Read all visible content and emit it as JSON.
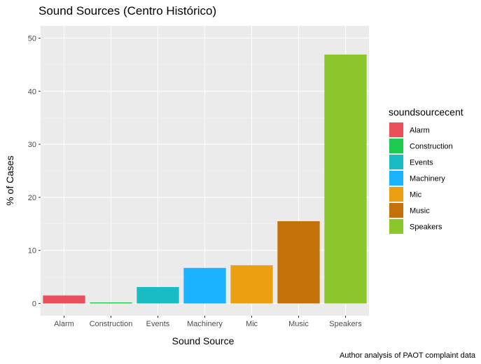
{
  "chart_data": {
    "type": "bar",
    "title": "Sound Sources (Centro Histórico)",
    "xlabel": "Sound Source",
    "ylabel": "% of Cases",
    "caption": "Author analysis of PAOT complaint data",
    "categories": [
      "Alarm",
      "Construction",
      "Events",
      "Machinery",
      "Mic",
      "Music",
      "Speakers"
    ],
    "values": [
      1.5,
      0.2,
      3.1,
      6.7,
      7.2,
      15.5,
      46.9
    ],
    "colors": [
      "#E9505A",
      "#1ECB4E",
      "#18BDC4",
      "#18B2FF",
      "#EAA010",
      "#C27208",
      "#8BC62A"
    ],
    "ylim": [
      -2.3,
      52.3
    ],
    "yticks": [
      0,
      10,
      20,
      30,
      40,
      50
    ],
    "grid": true,
    "legend": {
      "title": "soundsourcecent",
      "position": "right",
      "entries": [
        "Alarm",
        "Construction",
        "Events",
        "Machinery",
        "Mic",
        "Music",
        "Speakers"
      ]
    }
  }
}
